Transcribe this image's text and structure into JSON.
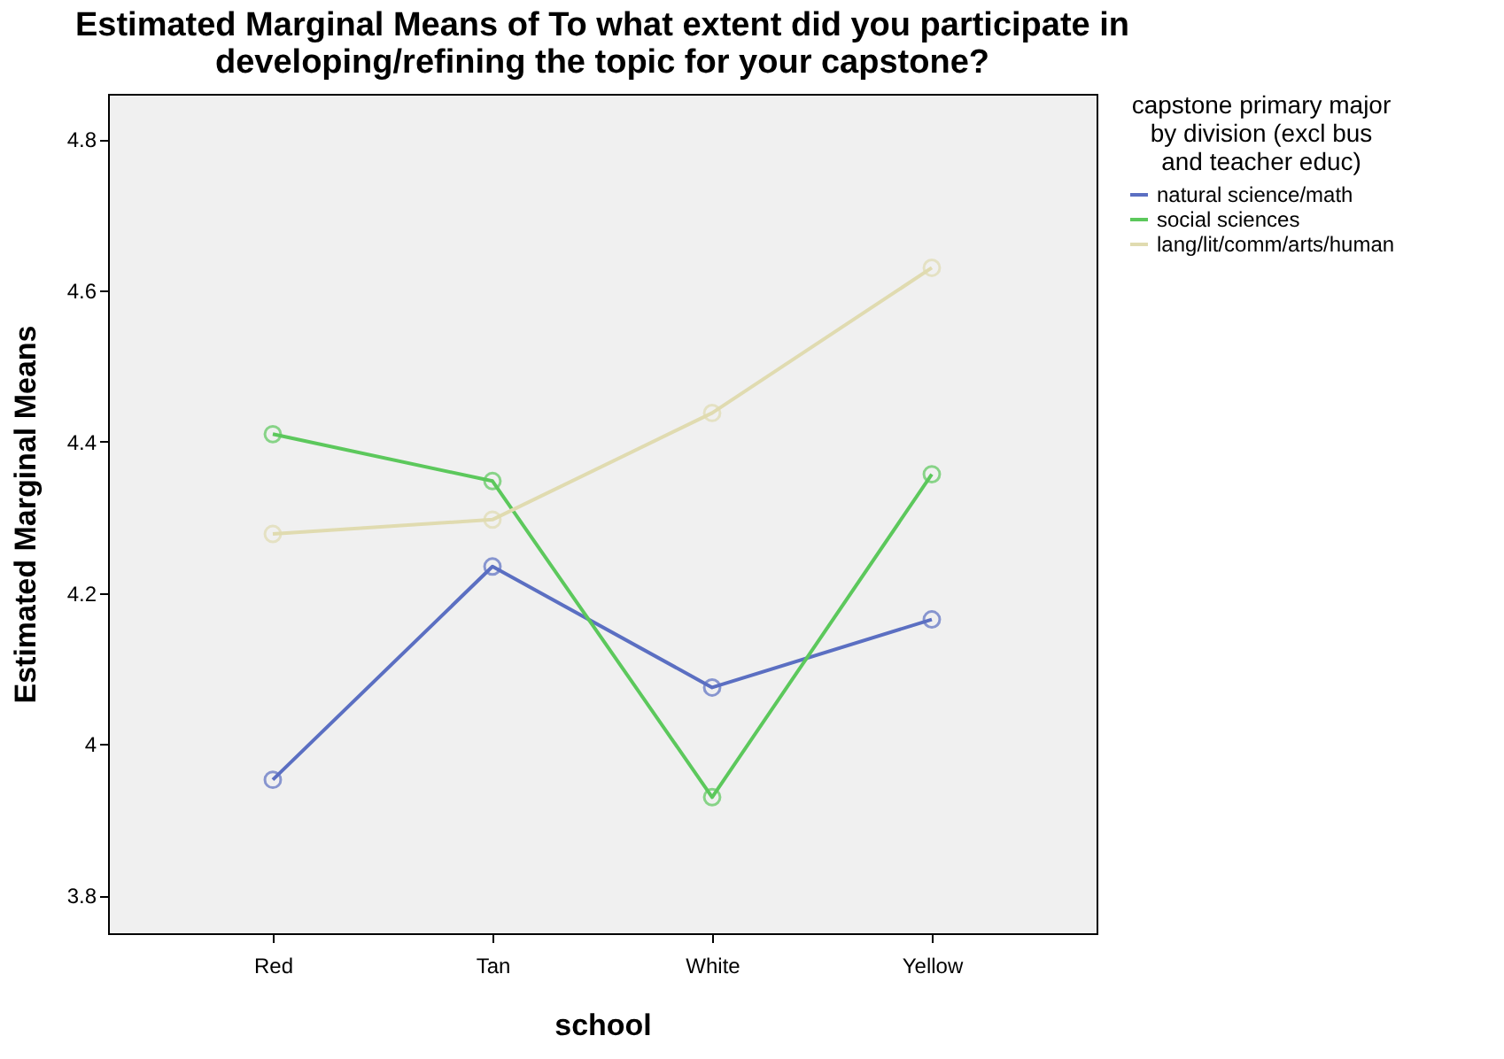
{
  "chart_data": {
    "type": "line",
    "title": "Estimated Marginal Means of To what extent did you participate in developing/refining the topic for your capstone?",
    "xlabel": "school",
    "ylabel": "Estimated Marginal Means",
    "legend_title": "capstone primary major by division (excl bus and teacher educ)",
    "categories": [
      "Red",
      "Tan",
      "White",
      "Yellow"
    ],
    "series": [
      {
        "name": "natural science/math",
        "color": "#5b6fc2",
        "values": [
          3.953,
          4.235,
          4.075,
          4.165
        ]
      },
      {
        "name": "social sciences",
        "color": "#5cc85c",
        "values": [
          4.41,
          4.348,
          3.93,
          4.357
        ]
      },
      {
        "name": "lang/lit/comm/arts/human",
        "color": "#e0dbb0",
        "values": [
          4.278,
          4.297,
          4.438,
          4.63
        ]
      }
    ],
    "ylim": [
      3.75,
      4.86
    ],
    "yticks": [
      3.8,
      4,
      4.2,
      4.4,
      4.6,
      4.8
    ],
    "grid": false,
    "legend": "right",
    "marker": "circle",
    "line_style": "solid"
  }
}
